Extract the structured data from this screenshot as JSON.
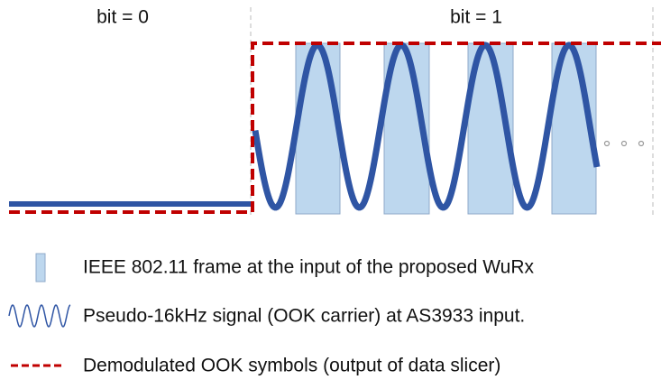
{
  "header": {
    "bit0": "bit = 0",
    "bit1": "bit = 1"
  },
  "legend": [
    {
      "label": "IEEE 802.11 frame at the input of the proposed WuRx"
    },
    {
      "label": "Pseudo-16kHz signal (OOK carrier) at AS3933 input."
    },
    {
      "label": "Demodulated OOK symbols (output of data slicer)"
    }
  ]
}
